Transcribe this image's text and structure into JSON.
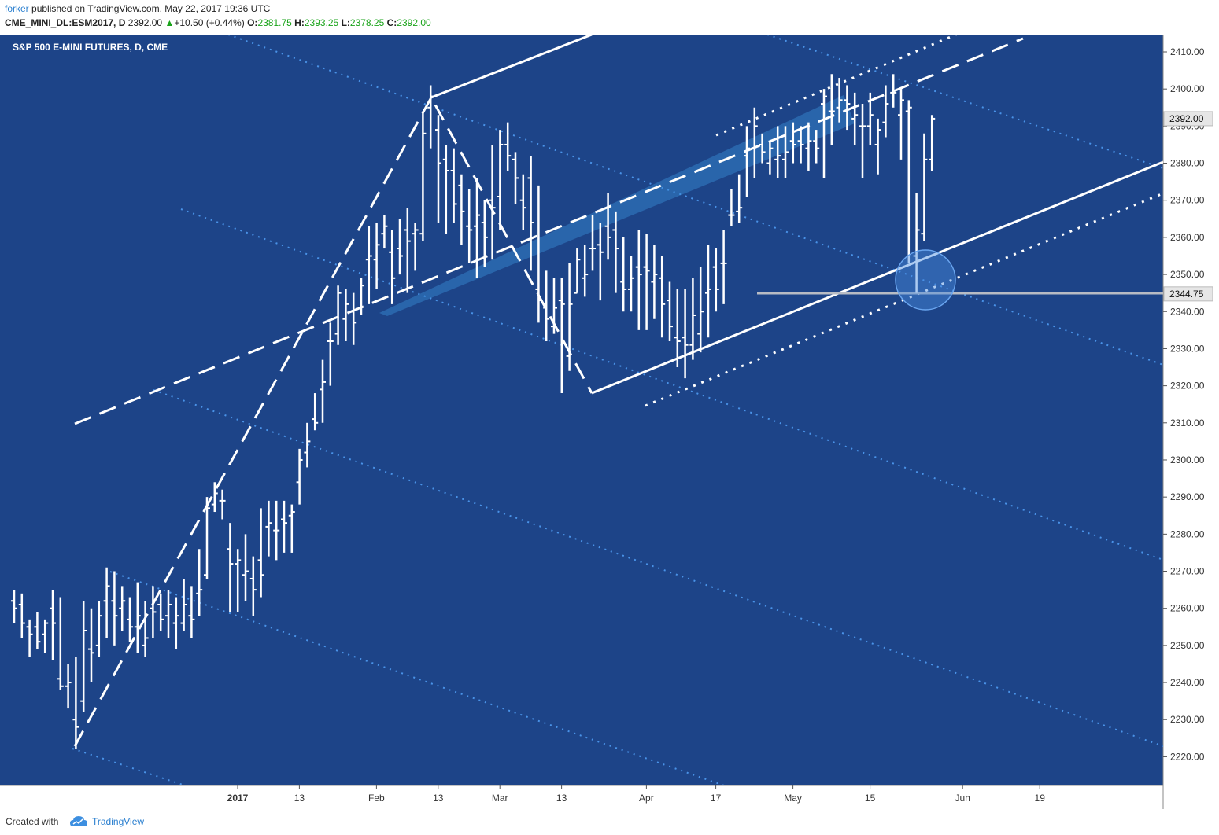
{
  "header": {
    "author": "forker",
    "published_text": " published on TradingView.com, May 22, 2017 19:36 UTC",
    "symbol": "CME_MINI_DL:ESM2017, D",
    "change": "+10.50 (+0.44%)",
    "ohlc": [
      {
        "label": "O:",
        "value": "2381.75"
      },
      {
        "label": "H:",
        "value": "2393.25"
      },
      {
        "label": "L:",
        "value": "2378.25"
      },
      {
        "label": "C:",
        "value": "2392.00"
      }
    ],
    "raw_price": "2392.00"
  },
  "footer": {
    "created_with": "Created with",
    "brand": "TradingView",
    "logo_icon": "tradingview-cloud-icon"
  },
  "colors": {
    "background": "#1d4488",
    "axis_bg": "#ffffff",
    "bars": "#ffffff",
    "fib_lines": "#4a93e8",
    "channel_band": "#3a8fd8",
    "support_line": "#b8bcc4",
    "circle": "#4a8be0"
  },
  "chart_data": {
    "type": "bar",
    "title": "S&P 500 E-MINI FUTURES, D, CME",
    "ylim": [
      2212,
      2417
    ],
    "yticks": [
      "2220.00",
      "2230.00",
      "2240.00",
      "2250.00",
      "2260.00",
      "2270.00",
      "2280.00",
      "2290.00",
      "2300.00",
      "2310.00",
      "2320.00",
      "2330.00",
      "2340.00",
      "2350.00",
      "2360.00",
      "2370.00",
      "2380.00",
      "2390.00",
      "2400.00",
      "2410.00"
    ],
    "xticks": [
      {
        "label": "2017",
        "i": 20,
        "bold": true
      },
      {
        "label": "13",
        "i": 28
      },
      {
        "label": "Feb",
        "i": 38
      },
      {
        "label": "13",
        "i": 46
      },
      {
        "label": "Mar",
        "i": 54
      },
      {
        "label": "13",
        "i": 62
      },
      {
        "label": "Apr",
        "i": 73
      },
      {
        "label": "17",
        "i": 82
      },
      {
        "label": "May",
        "i": 92
      },
      {
        "label": "15",
        "i": 102
      },
      {
        "label": "Jun",
        "i": 114
      },
      {
        "label": "19",
        "i": 124
      }
    ],
    "ohlc": [
      [
        2262,
        2265,
        2256,
        2260
      ],
      [
        2261,
        2264,
        2252,
        2256
      ],
      [
        2255,
        2257,
        2247,
        2253
      ],
      [
        2255,
        2259,
        2249,
        2251
      ],
      [
        2253,
        2257,
        2248,
        2256
      ],
      [
        2260,
        2265,
        2246,
        2256
      ],
      [
        2241,
        2263,
        2238,
        2239
      ],
      [
        2239,
        2245,
        2233,
        2240
      ],
      [
        2230,
        2247,
        2222,
        2228
      ],
      [
        2235,
        2262,
        2232,
        2254
      ],
      [
        2249,
        2260,
        2240,
        2248
      ],
      [
        2250,
        2262,
        2247,
        2258
      ],
      [
        2262,
        2271,
        2252,
        2266
      ],
      [
        2262,
        2270,
        2250,
        2258
      ],
      [
        2260,
        2266,
        2254,
        2262
      ],
      [
        2257,
        2263,
        2251,
        2255
      ],
      [
        2255,
        2267,
        2248,
        2258
      ],
      [
        2250,
        2262,
        2247,
        2252
      ],
      [
        2260,
        2266,
        2252,
        2259
      ],
      [
        2261,
        2264,
        2254,
        2257
      ],
      [
        2258,
        2265,
        2252,
        2261
      ],
      [
        2256,
        2263,
        2249,
        2258
      ],
      [
        2256,
        2268,
        2254,
        2261
      ],
      [
        2258,
        2266,
        2252,
        2257
      ],
      [
        2264,
        2276,
        2258,
        2265
      ],
      [
        2269,
        2290,
        2268,
        2287
      ],
      [
        2288,
        2294,
        2286,
        2291
      ],
      [
        2289,
        2292,
        2284,
        2289
      ],
      [
        2276,
        2283,
        2259,
        2272
      ],
      [
        2272,
        2276,
        2259,
        2273
      ],
      [
        2269,
        2280,
        2262,
        2270
      ],
      [
        2268,
        2274,
        2258,
        2265
      ],
      [
        2273,
        2287,
        2263,
        2269
      ],
      [
        2282,
        2289,
        2274,
        2283
      ],
      [
        2281,
        2289,
        2273,
        2281
      ],
      [
        2284,
        2289,
        2275,
        2283
      ],
      [
        2285,
        2288,
        2275,
        2286
      ],
      [
        2294,
        2303,
        2288,
        2300
      ],
      [
        2302,
        2310,
        2298,
        2305
      ],
      [
        2311,
        2318,
        2308,
        2310
      ],
      [
        2319,
        2327,
        2310,
        2321
      ],
      [
        2332,
        2337,
        2320,
        2332
      ],
      [
        2334,
        2347,
        2331,
        2345
      ],
      [
        2338,
        2346,
        2332,
        2342
      ],
      [
        2340,
        2345,
        2331,
        2337
      ],
      [
        2341,
        2349,
        2339,
        2347
      ],
      [
        2354,
        2363,
        2342,
        2355
      ],
      [
        2354,
        2364,
        2346,
        2358
      ],
      [
        2361,
        2366,
        2357,
        2363
      ],
      [
        2356,
        2362,
        2342,
        2349
      ],
      [
        2357,
        2365,
        2350,
        2355
      ],
      [
        2362,
        2368,
        2345,
        2359
      ],
      [
        2361,
        2364,
        2351,
        2362
      ],
      [
        2361,
        2394,
        2359,
        2388
      ],
      [
        2395,
        2401,
        2384,
        2398
      ],
      [
        2389,
        2393,
        2364,
        2380
      ],
      [
        2381,
        2385,
        2361,
        2378
      ],
      [
        2378,
        2384,
        2364,
        2369
      ],
      [
        2374,
        2377,
        2358,
        2367
      ],
      [
        2363,
        2373,
        2353,
        2362
      ],
      [
        2363,
        2376,
        2349,
        2366
      ],
      [
        2364,
        2370,
        2352,
        2360
      ],
      [
        2370,
        2385,
        2354,
        2368
      ],
      [
        2371,
        2389,
        2362,
        2385
      ],
      [
        2385,
        2391,
        2378,
        2382
      ],
      [
        2381,
        2383,
        2369,
        2376
      ],
      [
        2370,
        2377,
        2362,
        2368
      ],
      [
        2376,
        2382,
        2351,
        2364
      ],
      [
        2346,
        2374,
        2337,
        2343
      ],
      [
        2341,
        2351,
        2332,
        2338
      ],
      [
        2336,
        2349,
        2334,
        2341
      ],
      [
        2343,
        2349,
        2318,
        2342
      ],
      [
        2328,
        2353,
        2324,
        2342
      ],
      [
        2345,
        2357,
        2345,
        2354
      ],
      [
        2349,
        2358,
        2344,
        2350
      ],
      [
        2357,
        2366,
        2351,
        2357
      ],
      [
        2358,
        2364,
        2343,
        2356
      ],
      [
        2363,
        2372,
        2354,
        2360
      ],
      [
        2362,
        2367,
        2345,
        2357
      ],
      [
        2348,
        2360,
        2340,
        2346
      ],
      [
        2346,
        2355,
        2340,
        2349
      ],
      [
        2352,
        2362,
        2335,
        2350
      ],
      [
        2352,
        2361,
        2335,
        2351
      ],
      [
        2348,
        2358,
        2338,
        2350
      ],
      [
        2349,
        2355,
        2333,
        2342
      ],
      [
        2343,
        2348,
        2332,
        2336
      ],
      [
        2333,
        2346,
        2325,
        2332
      ],
      [
        2333,
        2346,
        2322,
        2331
      ],
      [
        2331,
        2349,
        2327,
        2339
      ],
      [
        2334,
        2352,
        2329,
        2340
      ],
      [
        2345,
        2358,
        2333,
        2346
      ],
      [
        2352,
        2357,
        2340,
        2346
      ],
      [
        2353,
        2362,
        2342,
        2353
      ],
      [
        2366,
        2373,
        2363,
        2366
      ],
      [
        2367,
        2377,
        2364,
        2368
      ],
      [
        2382,
        2390,
        2371,
        2384
      ],
      [
        2384,
        2395,
        2376,
        2390
      ],
      [
        2385,
        2388,
        2380,
        2383
      ],
      [
        2380,
        2386,
        2377,
        2384
      ],
      [
        2381,
        2390,
        2376,
        2382
      ],
      [
        2381,
        2390,
        2376,
        2383
      ],
      [
        2386,
        2391,
        2380,
        2385
      ],
      [
        2386,
        2390,
        2380,
        2385
      ],
      [
        2384,
        2391,
        2378,
        2386
      ],
      [
        2386,
        2389,
        2380,
        2384
      ],
      [
        2396,
        2400,
        2376,
        2398
      ],
      [
        2394,
        2404,
        2385,
        2394
      ],
      [
        2395,
        2403,
        2391,
        2397
      ],
      [
        2397,
        2401,
        2389,
        2396
      ],
      [
        2392,
        2399,
        2385,
        2393
      ],
      [
        2390,
        2396,
        2376,
        2390
      ],
      [
        2390,
        2399,
        2385,
        2393
      ],
      [
        2385,
        2392,
        2377,
        2389
      ],
      [
        2391,
        2401,
        2387,
        2396
      ],
      [
        2399,
        2404,
        2395,
        2399
      ],
      [
        2393,
        2400,
        2381,
        2397
      ],
      [
        2394,
        2397,
        2353,
        2395
      ],
      [
        2355,
        2372,
        2345,
        2362
      ],
      [
        2361,
        2388,
        2359,
        2381
      ],
      [
        2381,
        2393,
        2378,
        2392
      ]
    ],
    "price_labels": [
      {
        "value": "2392.00",
        "y": 2392
      },
      {
        "value": "2344.75",
        "y": 2344.75
      }
    ]
  }
}
